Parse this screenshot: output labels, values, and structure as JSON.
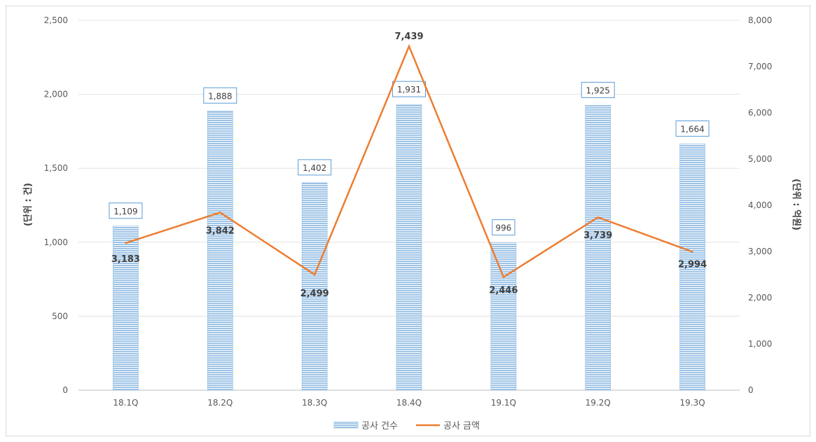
{
  "chart_data": {
    "type": "bar",
    "categories": [
      "18.1Q",
      "18.2Q",
      "18.3Q",
      "18.4Q",
      "19.1Q",
      "19.2Q",
      "19.3Q"
    ],
    "series": [
      {
        "name": "공사 건수",
        "type": "bar",
        "axis": "left",
        "values": [
          1109,
          1888,
          1402,
          1931,
          996,
          1925,
          1664
        ],
        "labels": [
          "1,109",
          "1,888",
          "1,402",
          "1,931",
          "996",
          "1,925",
          "1,664"
        ],
        "color": "#9dc3e6"
      },
      {
        "name": "공사 금액",
        "type": "line",
        "axis": "right",
        "values": [
          3183,
          3842,
          2499,
          7439,
          2446,
          3739,
          2994
        ],
        "labels": [
          "3,183",
          "3,842",
          "2,499",
          "7,439",
          "2,446",
          "3,739",
          "2,994"
        ],
        "color": "#ed7d31"
      }
    ],
    "ylabel": "(단위 : 건)",
    "y2label": "(단위 : 억원)",
    "ylim": [
      0,
      2500
    ],
    "y2lim": [
      0,
      8000
    ],
    "yticks": [
      "0",
      "500",
      "1,000",
      "1,500",
      "2,000",
      "2,500"
    ],
    "y2ticks": [
      "0",
      "1,000",
      "2,000",
      "3,000",
      "4,000",
      "5,000",
      "6,000",
      "7,000",
      "8,000"
    ],
    "grid": true,
    "legend": "bottom"
  }
}
